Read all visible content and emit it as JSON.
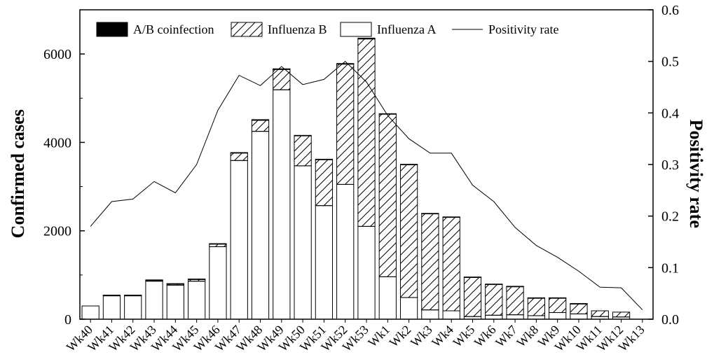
{
  "chart_data": {
    "type": "bar",
    "stacked": true,
    "title": "",
    "xlabel": "",
    "ylabel": "Confirmed cases",
    "y2label": "Positivity rate",
    "ylim": [
      0,
      7000
    ],
    "y2lim": [
      0,
      0.6
    ],
    "yticks": [
      0,
      2000,
      4000,
      6000
    ],
    "y2ticks": [
      0.0,
      0.1,
      0.2,
      0.3,
      0.4,
      0.5,
      0.6
    ],
    "y2tick_labels": [
      "0.0",
      "0.1",
      "0.2",
      "0.3",
      "0.4",
      "0.5",
      "0.6"
    ],
    "grid": false,
    "legend_position": "top",
    "categories": [
      "Wk40",
      "Wk41",
      "Wk42",
      "Wk43",
      "Wk44",
      "Wk45",
      "Wk46",
      "Wk47",
      "Wk48",
      "Wk49",
      "Wk50",
      "Wk51",
      "Wk52",
      "Wk53",
      "Wk1",
      "Wk2",
      "Wk3",
      "Wk4",
      "Wk5",
      "Wk6",
      "Wk7",
      "Wk8",
      "Wk9",
      "Wk10",
      "Wk11",
      "Wk12",
      "Wk13"
    ],
    "series": [
      {
        "name": "A/B coinfection",
        "kind": "bar",
        "fill": "solid",
        "color": "#000000",
        "values": [
          0,
          5,
          5,
          10,
          5,
          10,
          10,
          10,
          15,
          15,
          10,
          10,
          15,
          20,
          10,
          5,
          5,
          5,
          5,
          5,
          5,
          5,
          5,
          5,
          0,
          0,
          0
        ]
      },
      {
        "name": "Influenza B",
        "kind": "bar",
        "fill": "hatch",
        "color": "#000000",
        "values": [
          0,
          10,
          10,
          20,
          30,
          40,
          60,
          170,
          250,
          460,
          680,
          1040,
          2720,
          4240,
          3680,
          3010,
          2180,
          2120,
          890,
          700,
          640,
          400,
          330,
          230,
          130,
          110,
          0
        ]
      },
      {
        "name": "Influenza A",
        "kind": "bar",
        "fill": "empty",
        "color": "#000000",
        "values": [
          300,
          530,
          530,
          860,
          770,
          860,
          1640,
          3590,
          4250,
          5190,
          3470,
          2570,
          3050,
          2100,
          960,
          490,
          210,
          190,
          60,
          90,
          100,
          80,
          150,
          120,
          60,
          50,
          0
        ]
      },
      {
        "name": "Positivity rate",
        "kind": "line",
        "axis": "right",
        "color": "#000000",
        "values": [
          0.18,
          0.228,
          0.233,
          0.267,
          0.245,
          0.3,
          0.405,
          0.473,
          0.453,
          0.49,
          0.455,
          0.465,
          0.5,
          0.46,
          0.395,
          0.35,
          0.322,
          0.322,
          0.26,
          0.228,
          0.178,
          0.143,
          0.12,
          0.093,
          0.062,
          0.061,
          0.018
        ]
      }
    ]
  }
}
